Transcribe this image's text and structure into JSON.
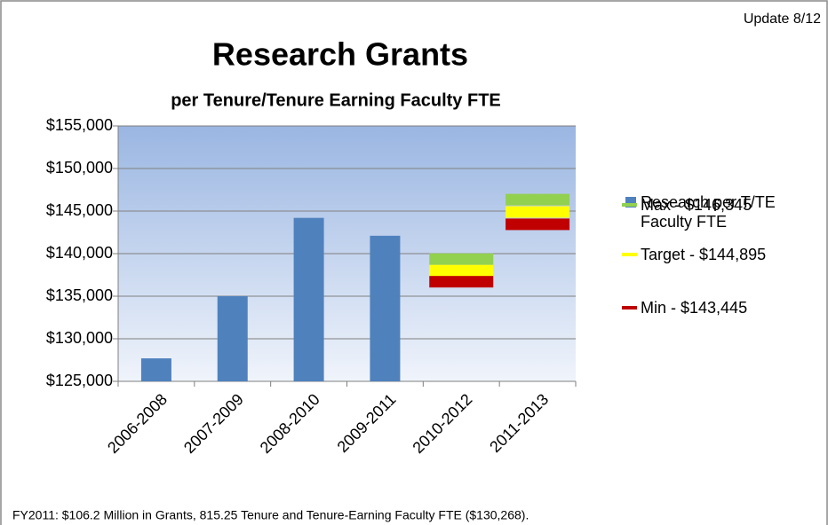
{
  "chart_data": {
    "type": "bar",
    "title": "Research Grants",
    "subtitle": "per Tenure/Tenure Earning Faculty FTE",
    "annotation": "Update 8/12",
    "footnote": "FY2011: $106.2 Million in Grants, 815.25 Tenure and Tenure-Earning Faculty FTE ($130,268).",
    "categories": [
      "2006-2008",
      "2007-2009",
      "2008-2010",
      "2009-2011",
      "2010-2012",
      "2011-2013"
    ],
    "series": [
      {
        "name": "Research per T/TE Faculty FTE",
        "type": "bar",
        "color": "#4f81bd",
        "values": [
          127700,
          135000,
          144200,
          142100,
          null,
          null
        ]
      },
      {
        "name": "Max - $146,345",
        "type": "marker",
        "color": "#92d050",
        "values": [
          null,
          null,
          null,
          null,
          139350,
          146345
        ]
      },
      {
        "name": "Target - $144,895",
        "type": "marker",
        "color": "#ffff00",
        "values": [
          null,
          null,
          null,
          null,
          138000,
          144895
        ]
      },
      {
        "name": "Min - $143,445",
        "type": "marker",
        "color": "#c00000",
        "values": [
          null,
          null,
          null,
          null,
          136700,
          143445
        ]
      }
    ],
    "ylim": [
      125000,
      155000
    ],
    "yticks": [
      {
        "value": 125000,
        "label": "$125,000"
      },
      {
        "value": 130000,
        "label": "$130,000"
      },
      {
        "value": 135000,
        "label": "$135,000"
      },
      {
        "value": 140000,
        "label": "$140,000"
      },
      {
        "value": 145000,
        "label": "$145,000"
      },
      {
        "value": 150000,
        "label": "$150,000"
      },
      {
        "value": 155000,
        "label": "$155,000"
      }
    ],
    "grid": true,
    "legend": "right"
  }
}
